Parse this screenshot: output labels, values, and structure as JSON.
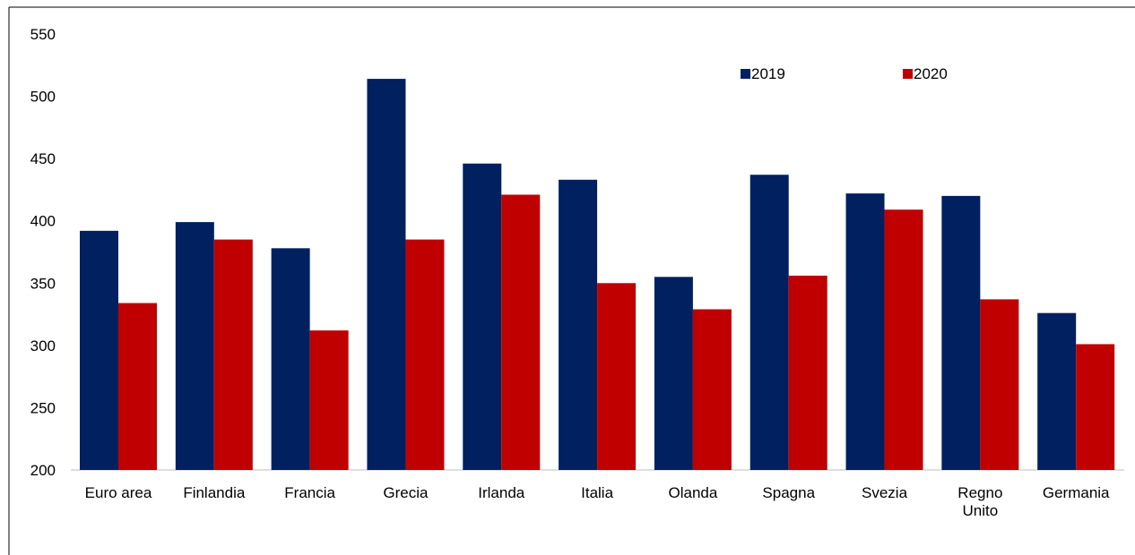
{
  "chart_data": {
    "type": "bar",
    "title": "",
    "xlabel": "",
    "ylabel": "",
    "categories": [
      [
        "Euro area"
      ],
      [
        "Finlandia"
      ],
      [
        "Francia"
      ],
      [
        "Grecia"
      ],
      [
        "Irlanda"
      ],
      [
        "Italia"
      ],
      [
        "Olanda"
      ],
      [
        "Spagna"
      ],
      [
        "Svezia"
      ],
      [
        "Regno",
        "Unito"
      ],
      [
        "Germania"
      ]
    ],
    "series": [
      {
        "name": "2019",
        "color": "#002060",
        "values": [
          392,
          399,
          378,
          514,
          446,
          433,
          355,
          437,
          422,
          420,
          326
        ]
      },
      {
        "name": "2020",
        "color": "#c00000",
        "values": [
          334,
          385,
          312,
          385,
          421,
          350,
          329,
          356,
          409,
          337,
          301
        ]
      }
    ],
    "ylim": [
      200,
      550
    ],
    "yticks": [
      "200",
      "250",
      "300",
      "350",
      "400",
      "450",
      "500",
      "550"
    ],
    "grid": false,
    "legend": "top-right"
  }
}
